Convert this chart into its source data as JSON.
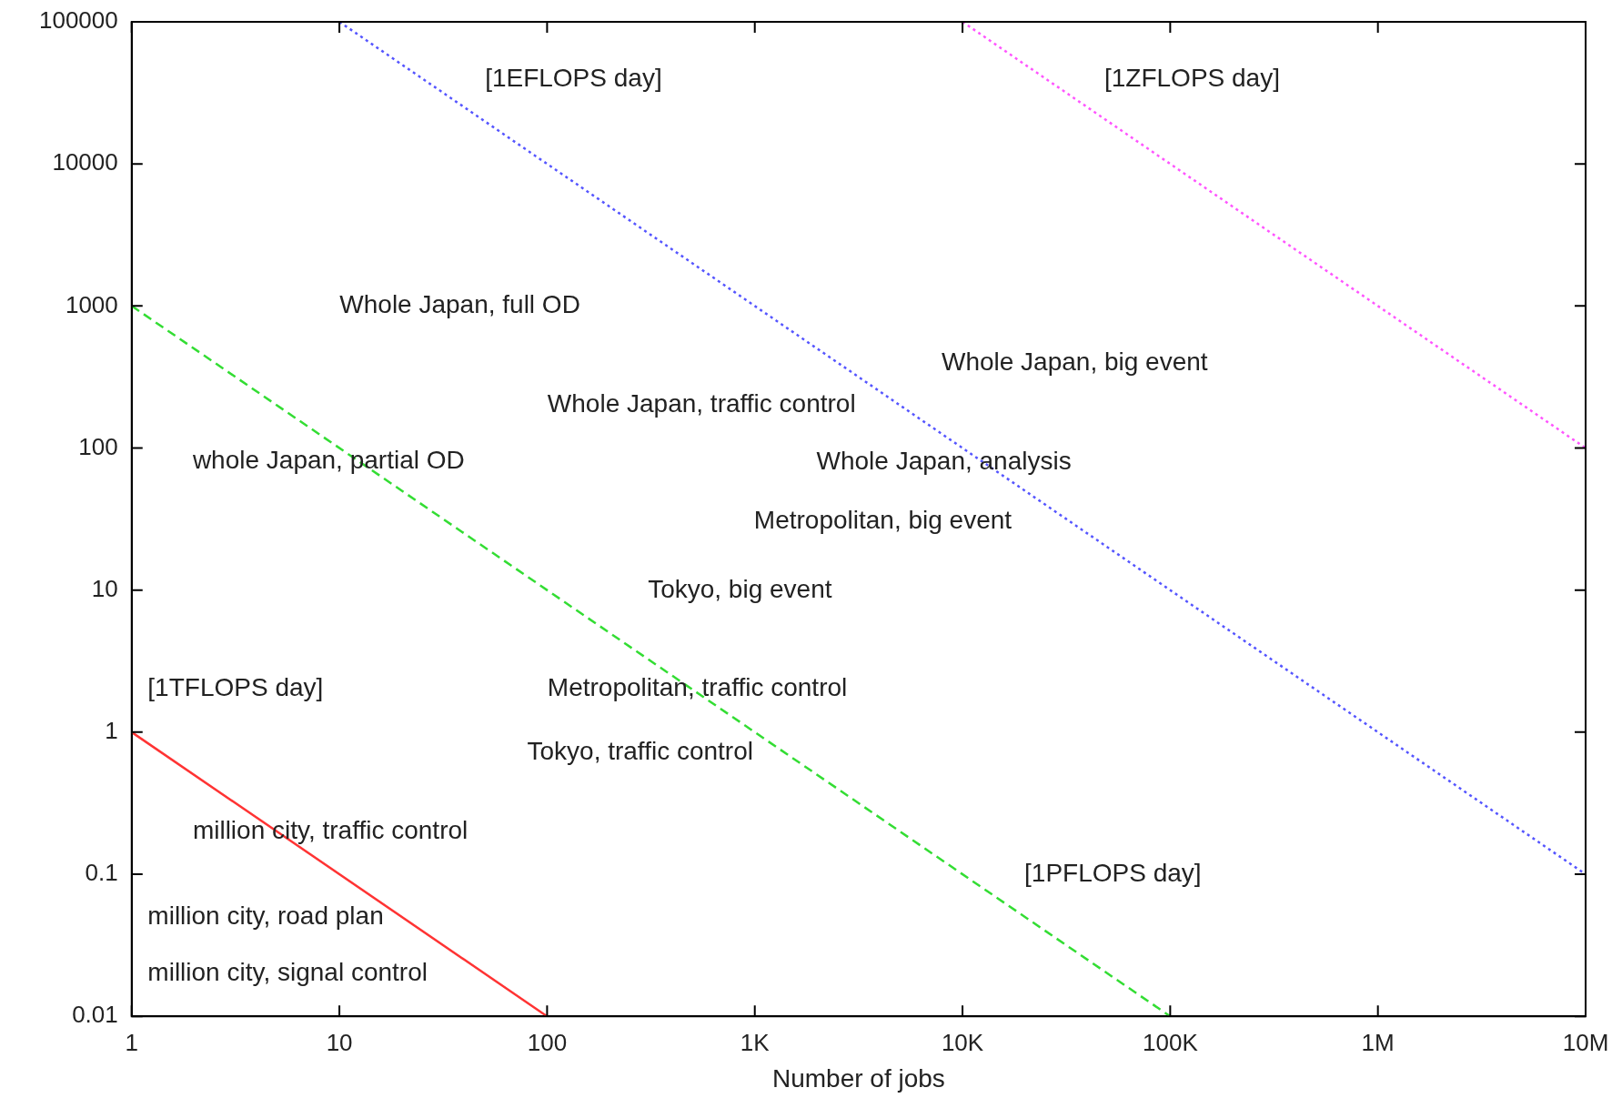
{
  "chart_data": {
    "type": "line",
    "xlabel": "Number of jobs",
    "log": "xy",
    "grid": false,
    "legend": false,
    "marker": "none",
    "xlim": [
      1,
      10000000
    ],
    "ylim": [
      0.01,
      100000
    ],
    "xticks": [
      1,
      10,
      100,
      {
        "value": 1000,
        "label": "1K"
      },
      {
        "value": 10000,
        "label": "10K"
      },
      {
        "value": 100000,
        "label": "100K"
      },
      {
        "value": 1000000,
        "label": "1M"
      },
      {
        "value": 10000000,
        "label": "10M"
      }
    ],
    "yticks": [
      0.01,
      0.1,
      1,
      10,
      100,
      1000,
      10000,
      100000
    ],
    "series": [
      {
        "color": "#ff3333",
        "line_style": "solid",
        "x": [
          1,
          100
        ],
        "values": [
          1,
          0.01
        ]
      },
      {
        "color": "#33dd33",
        "line_style": "dashed",
        "x": [
          1,
          100000
        ],
        "values": [
          1000,
          0.01
        ]
      },
      {
        "color": "#5555ff",
        "line_style": "dotted",
        "x": [
          10,
          10000000
        ],
        "values": [
          100000,
          0.1
        ]
      },
      {
        "color": "#ff55ff",
        "line_style": "dotted",
        "x": [
          10000,
          10000000
        ],
        "values": [
          100000,
          100
        ]
      }
    ],
    "annotations": [
      "[1EFLOPS day]",
      "[1ZFLOPS day]",
      "Whole Japan, full OD",
      "Whole Japan, big event",
      "Whole Japan, traffic control",
      "whole Japan, partial OD",
      "Whole Japan, analysis",
      "Metropolitan, big event",
      "Tokyo, big event",
      "[1TFLOPS day]",
      "Metropolitan, traffic control",
      "Tokyo, traffic control",
      "million city, traffic control",
      "[1PFLOPS day]",
      "million city, road plan",
      "million city, signal control"
    ]
  }
}
